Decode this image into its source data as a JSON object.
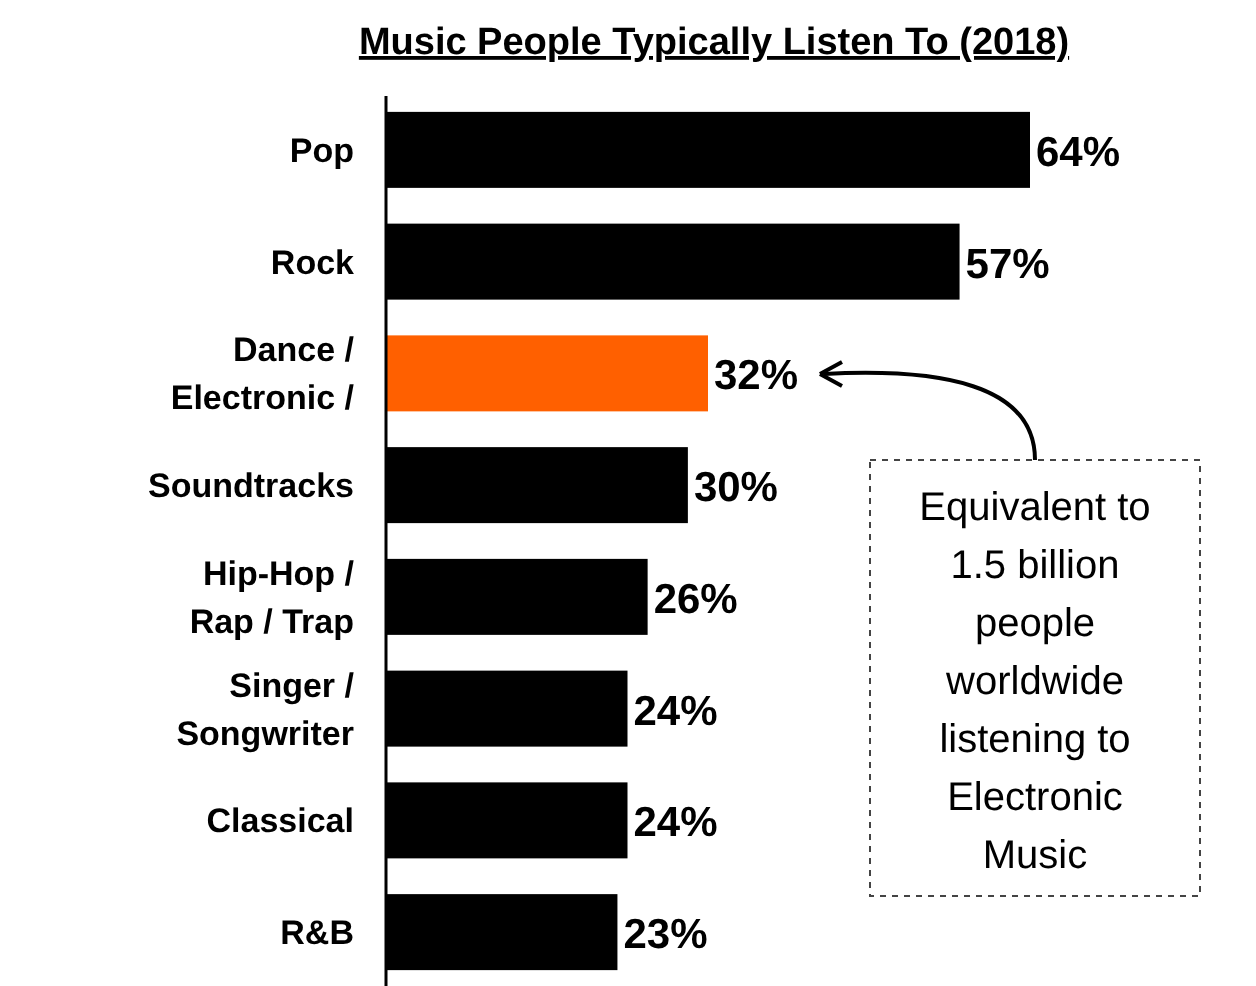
{
  "chart_data": {
    "type": "bar",
    "orientation": "horizontal",
    "title": "Music People Typically Listen To (2018)",
    "categories": [
      "Pop",
      "Rock",
      "Dance / Electronic /",
      "Soundtracks",
      "Hip-Hop / Rap / Trap",
      "Singer / Songwriter",
      "Classical",
      "R&B"
    ],
    "values": [
      64,
      57,
      32,
      30,
      26,
      24,
      24,
      23
    ],
    "colors": [
      "#000000",
      "#000000",
      "#ff6000",
      "#000000",
      "#000000",
      "#000000",
      "#000000",
      "#000000"
    ],
    "data_labels": true,
    "value_labels": [
      "64%",
      "57%",
      "32%",
      "30%",
      "26%",
      "24%",
      "24%",
      "23%"
    ],
    "annotations": [
      "Equivalent to 1.5 billion people worldwide listening to Electronic Music"
    ]
  }
}
